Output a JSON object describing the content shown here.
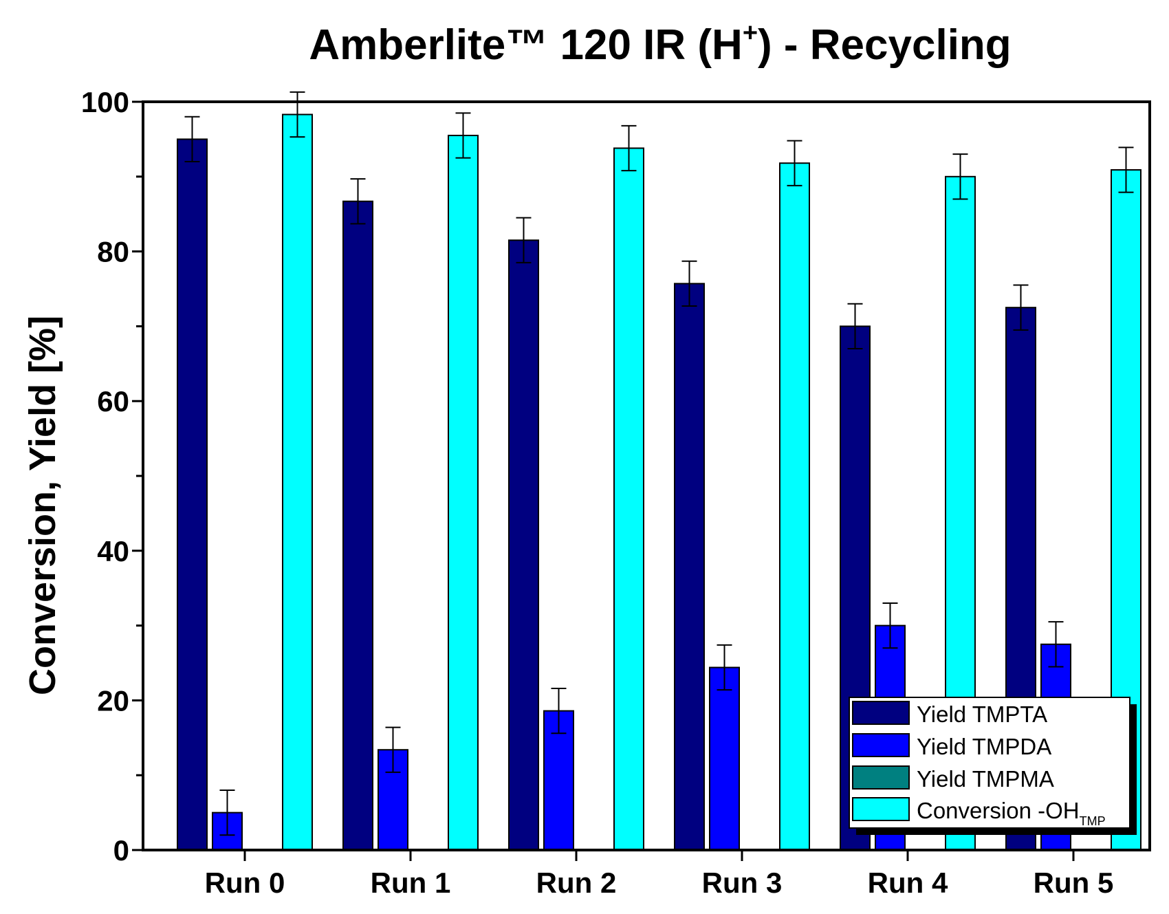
{
  "chart_data": {
    "type": "bar",
    "title": {
      "main": "Amberlite™ 120 IR (H",
      "superscript": "+",
      "suffix": ") - Recycling"
    },
    "xlabel": "",
    "ylabel": "Conversion, Yield [%]",
    "ylim": [
      0,
      100
    ],
    "yticks": [
      0,
      20,
      40,
      60,
      80,
      100
    ],
    "categories": [
      "Run 0",
      "Run 1",
      "Run 2",
      "Run 3",
      "Run 4",
      "Run 5"
    ],
    "series": [
      {
        "name": "Yield TMPTA",
        "color": "#000080",
        "values": [
          95,
          86.7,
          81.5,
          75.7,
          70,
          72.5
        ],
        "errors": [
          3,
          3,
          3,
          3,
          3,
          3
        ]
      },
      {
        "name": "Yield TMPDA",
        "color": "#0000ff",
        "values": [
          5,
          13.4,
          18.6,
          24.4,
          30,
          27.5
        ],
        "errors": [
          3,
          3,
          3,
          3,
          3,
          3
        ]
      },
      {
        "name": "Yield TMPMA",
        "color": "#008080",
        "values": [
          0,
          0,
          0,
          0,
          0,
          0
        ],
        "errors": [
          0,
          0,
          0,
          0,
          0,
          0
        ]
      },
      {
        "name": "Conversion -OH",
        "name_subscript": "TMP",
        "color": "#00ffff",
        "values": [
          98.3,
          95.5,
          93.8,
          91.8,
          90,
          90.9
        ],
        "errors": [
          3,
          3,
          3,
          3,
          3,
          3
        ]
      }
    ],
    "legend": {
      "position": "bottom-right"
    },
    "grid": false
  }
}
